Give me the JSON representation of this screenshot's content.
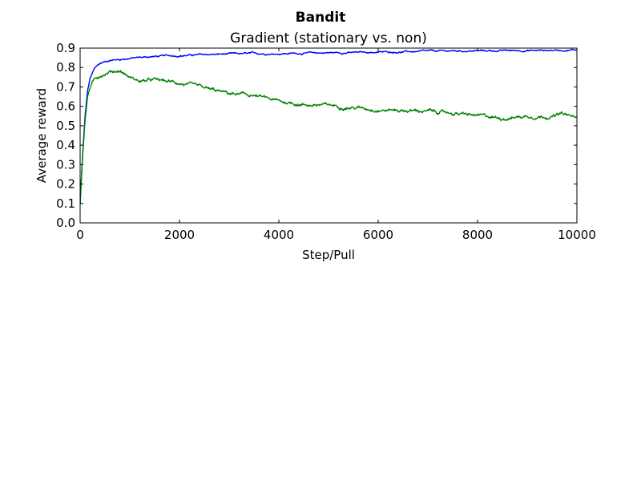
{
  "figure": {
    "suptitle": "Bandit"
  },
  "chart_data": {
    "type": "line",
    "title": "Gradient (stationary vs. non)",
    "xlabel": "Step/Pull",
    "ylabel": "Average reward",
    "xlim": [
      0,
      10000
    ],
    "ylim": [
      0,
      0.9
    ],
    "xticks": [
      0,
      2000,
      4000,
      6000,
      8000,
      10000
    ],
    "yticks": [
      0.0,
      0.1,
      0.2,
      0.3,
      0.4,
      0.5,
      0.6,
      0.7,
      0.8,
      0.9
    ],
    "xtick_labels": [
      "0",
      "2000",
      "4000",
      "6000",
      "8000",
      "10000"
    ],
    "ytick_labels": [
      "0.0",
      "0.1",
      "0.2",
      "0.3",
      "0.4",
      "0.5",
      "0.6",
      "0.7",
      "0.8",
      "0.9"
    ],
    "grid": false,
    "legend": false,
    "x": [
      0,
      50,
      100,
      150,
      200,
      300,
      400,
      500,
      600,
      800,
      1000,
      1200,
      1500,
      2000,
      2500,
      3000,
      3500,
      4000,
      4500,
      5000,
      5500,
      6000,
      6500,
      7000,
      7500,
      8000,
      8500,
      9000,
      9500,
      9700,
      10000
    ],
    "series": [
      {
        "color": "#0000ff",
        "noise": 0.004,
        "values": [
          0.1,
          0.35,
          0.55,
          0.68,
          0.74,
          0.8,
          0.82,
          0.83,
          0.838,
          0.842,
          0.848,
          0.852,
          0.857,
          0.862,
          0.866,
          0.869,
          0.871,
          0.872,
          0.874,
          0.876,
          0.877,
          0.879,
          0.881,
          0.883,
          0.885,
          0.886,
          0.887,
          0.888,
          0.889,
          0.89,
          0.892
        ]
      },
      {
        "color": "#008000",
        "noise": 0.008,
        "values": [
          0.1,
          0.35,
          0.53,
          0.65,
          0.7,
          0.74,
          0.76,
          0.77,
          0.78,
          0.785,
          0.75,
          0.73,
          0.735,
          0.72,
          0.69,
          0.665,
          0.655,
          0.625,
          0.61,
          0.605,
          0.595,
          0.585,
          0.58,
          0.575,
          0.565,
          0.55,
          0.54,
          0.55,
          0.55,
          0.56,
          0.54
        ]
      }
    ]
  }
}
